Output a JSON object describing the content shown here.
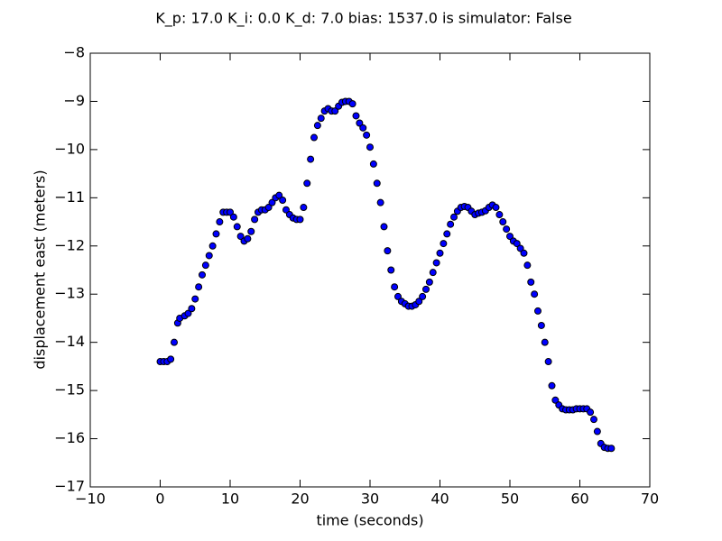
{
  "chart_data": {
    "type": "scatter",
    "title": "K_p: 17.0 K_i: 0.0 K_d: 7.0 bias: 1537.0 is simulator: False",
    "xlabel": "time (seconds)",
    "ylabel": "displacement east (meters)",
    "color": "#0000ff",
    "xlim": [
      -10,
      70
    ],
    "ylim": [
      -17,
      -8
    ],
    "xticks": [
      {
        "value": -10,
        "label": "−10"
      },
      0,
      10,
      20,
      30,
      40,
      50,
      60,
      70
    ],
    "yticks": [
      {
        "value": -8,
        "label": "−8"
      },
      {
        "value": -9,
        "label": "−9"
      },
      {
        "value": -10,
        "label": "−10"
      },
      {
        "value": -11,
        "label": "−11"
      },
      {
        "value": -12,
        "label": "−12"
      },
      {
        "value": -13,
        "label": "−13"
      },
      {
        "value": -14,
        "label": "−14"
      },
      {
        "value": -15,
        "label": "−15"
      },
      {
        "value": -16,
        "label": "−16"
      },
      {
        "value": -17,
        "label": "−17"
      }
    ],
    "x": [
      0,
      0.5,
      1,
      1.5,
      2,
      2.5,
      2.8,
      3.5,
      4,
      4.5,
      5,
      5.5,
      6,
      6.5,
      7,
      7.5,
      8,
      8.5,
      9,
      9.5,
      10,
      10.5,
      11,
      11.5,
      12,
      12.5,
      13,
      13.5,
      14,
      14.5,
      15,
      15.5,
      16,
      16.5,
      17,
      17.5,
      18,
      18.5,
      19,
      19.5,
      20,
      20.5,
      21,
      21.5,
      22,
      22.5,
      23,
      23.5,
      24,
      24.5,
      25,
      25.5,
      26,
      26.5,
      27,
      27.5,
      28,
      28.5,
      29,
      29.5,
      30,
      30.5,
      31,
      31.5,
      32,
      32.5,
      33,
      33.5,
      34,
      34.5,
      35,
      35.5,
      36,
      36.5,
      37,
      37.5,
      38,
      38.5,
      39,
      39.5,
      40,
      40.5,
      41,
      41.5,
      42,
      42.5,
      43,
      43.5,
      44,
      44.5,
      45,
      45.5,
      46,
      46.5,
      47,
      47.5,
      48,
      48.5,
      49,
      49.5,
      50,
      50.5,
      51,
      51.5,
      52,
      52.5,
      53,
      53.5,
      54,
      54.5,
      55,
      55.5,
      56,
      56.5,
      57,
      57.5,
      58,
      58.5,
      59,
      59.5,
      60,
      60.5,
      61,
      61.5,
      62,
      62.5,
      63,
      63.5,
      64,
      64.5
    ],
    "values": [
      -14.4,
      -14.4,
      -14.4,
      -14.35,
      -14.0,
      -13.6,
      -13.5,
      -13.45,
      -13.4,
      -13.3,
      -13.1,
      -12.85,
      -12.6,
      -12.4,
      -12.2,
      -12.0,
      -11.75,
      -11.5,
      -11.3,
      -11.3,
      -11.3,
      -11.4,
      -11.6,
      -11.8,
      -11.9,
      -11.85,
      -11.7,
      -11.45,
      -11.3,
      -11.25,
      -11.25,
      -11.2,
      -11.1,
      -11.0,
      -10.95,
      -11.05,
      -11.25,
      -11.35,
      -11.42,
      -11.45,
      -11.45,
      -11.2,
      -10.7,
      -10.2,
      -9.75,
      -9.5,
      -9.35,
      -9.2,
      -9.15,
      -9.2,
      -9.2,
      -9.1,
      -9.02,
      -9.0,
      -9.0,
      -9.05,
      -9.3,
      -9.45,
      -9.55,
      -9.7,
      -9.95,
      -10.3,
      -10.7,
      -11.1,
      -11.6,
      -12.1,
      -12.5,
      -12.85,
      -13.05,
      -13.15,
      -13.2,
      -13.25,
      -13.25,
      -13.22,
      -13.15,
      -13.05,
      -12.9,
      -12.75,
      -12.55,
      -12.35,
      -12.15,
      -11.95,
      -11.75,
      -11.55,
      -11.4,
      -11.28,
      -11.2,
      -11.18,
      -11.2,
      -11.28,
      -11.35,
      -11.32,
      -11.3,
      -11.27,
      -11.2,
      -11.15,
      -11.2,
      -11.35,
      -11.5,
      -11.65,
      -11.8,
      -11.9,
      -11.95,
      -12.05,
      -12.15,
      -12.4,
      -12.75,
      -13.0,
      -13.35,
      -13.65,
      -14.0,
      -14.4,
      -14.9,
      -15.2,
      -15.3,
      -15.38,
      -15.4,
      -15.4,
      -15.4,
      -15.38,
      -15.38,
      -15.38,
      -15.38,
      -15.45,
      -15.6,
      -15.85,
      -16.1,
      -16.18,
      -16.2,
      -16.2
    ]
  }
}
